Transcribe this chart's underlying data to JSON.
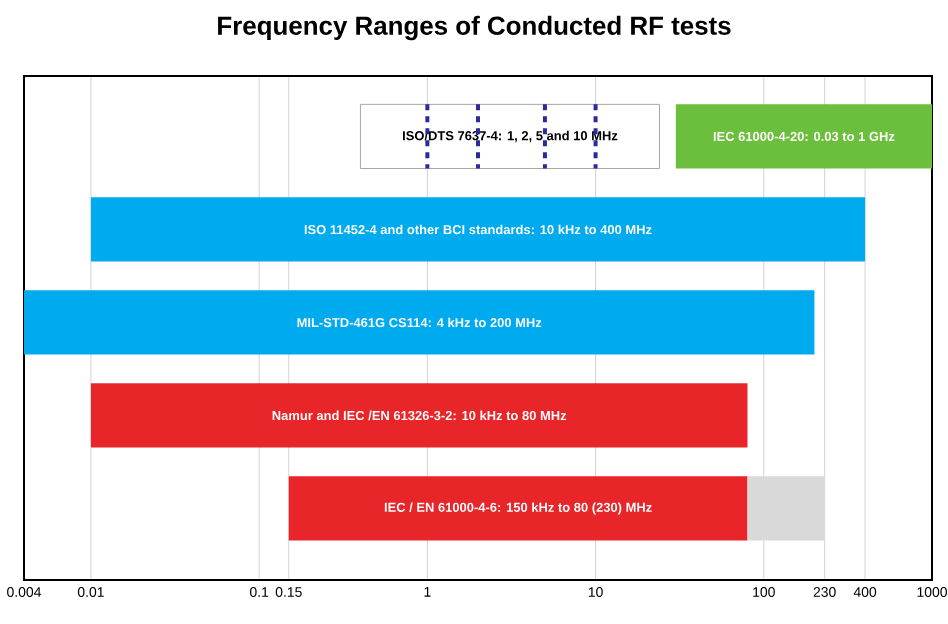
{
  "chart_data": {
    "type": "bar",
    "orientation": "horizontal",
    "title": "Frequency Ranges of Conducted RF tests",
    "categories": [
      null,
      null,
      null,
      null,
      null
    ],
    "series": [
      {
        "values": [
          23.6,
          399.99,
          199.996,
          79.99,
          79.85
        ],
        "base": [
          0.4,
          0.01,
          0.004,
          0.01,
          0.15
        ],
        "colors": [
          "#ffffff",
          "#00aaee",
          "#00aaee",
          "#e8262a",
          "#e8262a"
        ],
        "value_labels": [
          "ISO/DTS 7637-4: 1, 2, 5 and 10 MHz",
          "ISO 11452-4 and other BCI standards: 10 kHz to 400 MHz",
          "MIL-STD-461G CS114: 4 kHz to 200 MHz",
          "Namur and  IEC   /EN 61326-3-2: 10 kHz to 80 MHz",
          "IEC / EN 61000-4-6: 150 kHz to 80 (230) MHz"
        ]
      },
      {
        "values": [
          970,
          null,
          null,
          null,
          null
        ],
        "base": [
          30,
          null,
          null,
          null,
          null
        ],
        "color": "#6cbf3c",
        "value_labels": [
          "IEC 61000-4-20: 0.03 to 1 GHz",
          null,
          null,
          null,
          null
        ]
      },
      {
        "values": [
          null,
          null,
          null,
          null,
          150
        ],
        "base": [
          null,
          null,
          null,
          null,
          80
        ],
        "color": "#d9d9d9"
      }
    ],
    "ref_lines": [
      {
        "axis": "x",
        "value": 1,
        "color": "#2a2a9a",
        "line_style": "dashed"
      },
      {
        "axis": "x",
        "value": 2,
        "color": "#2a2a9a",
        "line_style": "dashed"
      },
      {
        "axis": "x",
        "value": 5,
        "color": "#2a2a9a",
        "line_style": "dashed"
      },
      {
        "axis": "x",
        "value": 10,
        "color": "#2a2a9a",
        "line_style": "dashed"
      }
    ],
    "log": "x",
    "xlim": [
      0.004,
      1000
    ],
    "xticks": [
      0.004,
      0.01,
      0.1,
      0.15,
      1,
      10,
      100,
      230,
      400,
      1000
    ],
    "grid": "x"
  }
}
